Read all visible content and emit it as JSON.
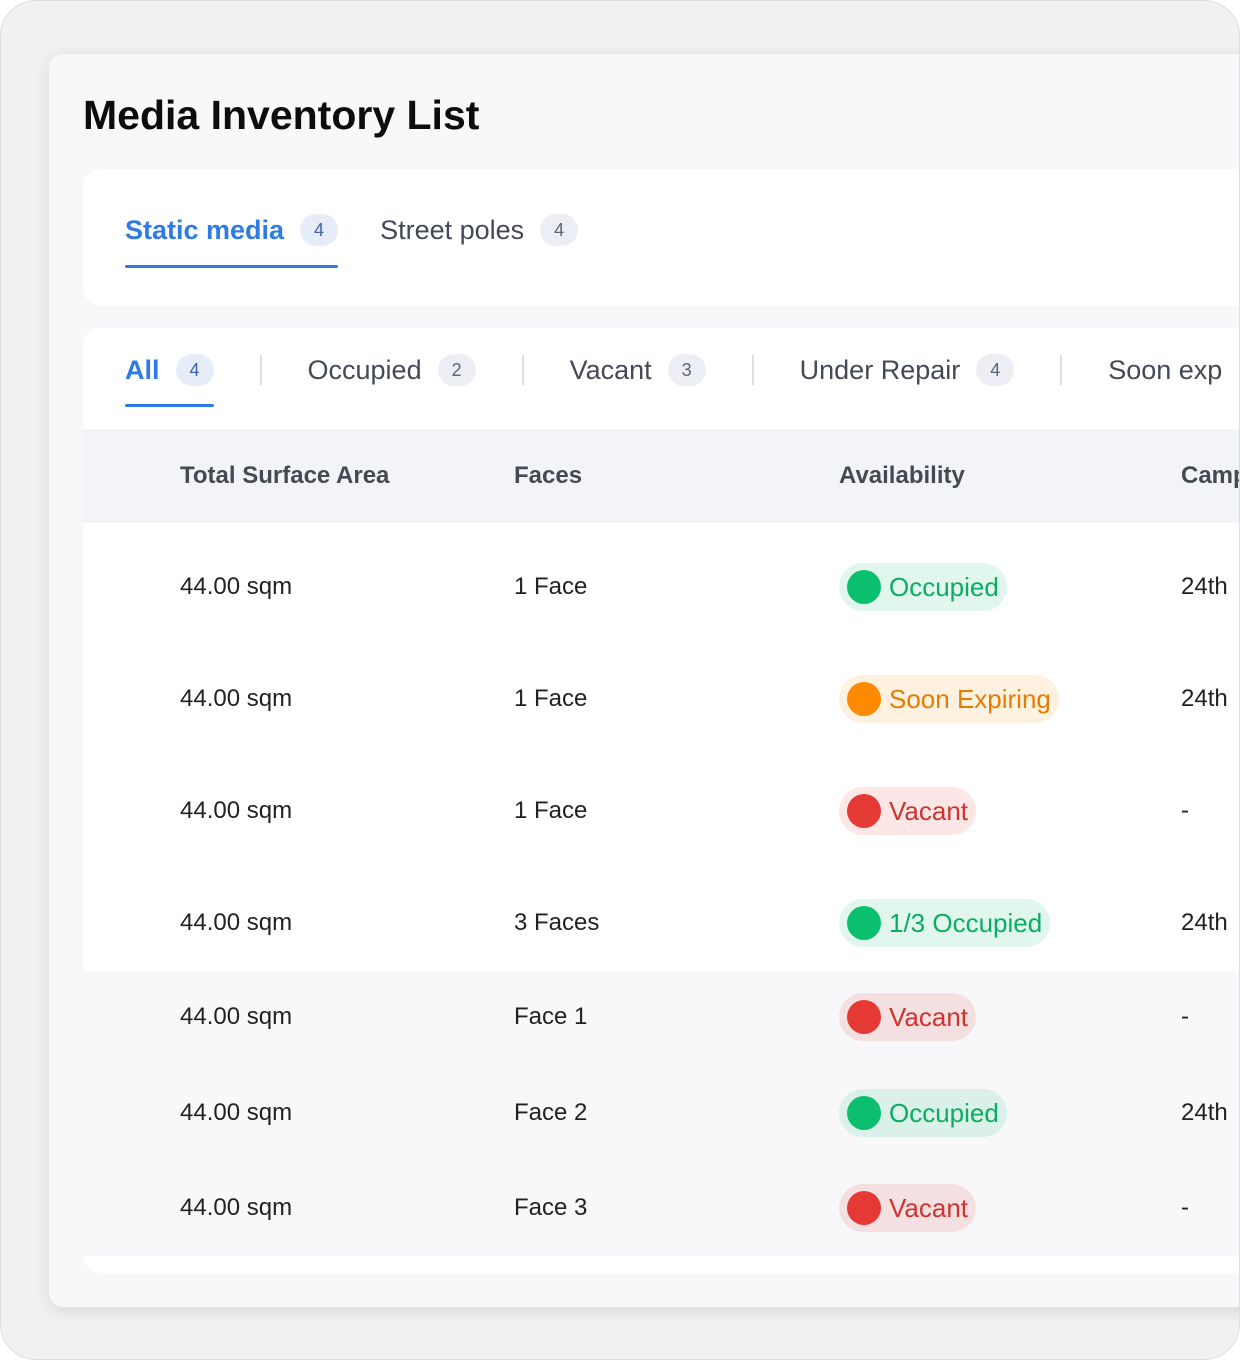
{
  "header": {
    "title": "Media Inventory List"
  },
  "tabs": [
    {
      "label": "Static media",
      "count": 4,
      "active": true
    },
    {
      "label": "Street poles",
      "count": 4,
      "active": false
    }
  ],
  "filters": [
    {
      "label": "All",
      "count": 4,
      "active": true
    },
    {
      "label": "Occupied",
      "count": 2,
      "active": false
    },
    {
      "label": "Vacant",
      "count": 3,
      "active": false
    },
    {
      "label": "Under Repair",
      "count": 4,
      "active": false
    },
    {
      "label": "Soon exp",
      "active": false
    }
  ],
  "table": {
    "columns": [
      "Total Surface Area",
      "Faces",
      "Availability",
      "Camp"
    ],
    "rows": [
      {
        "area": "44.00 sqm",
        "faces": "1 Face",
        "availability": {
          "label": "Occupied",
          "color": "#0cbf6e"
        },
        "campaign": "24th",
        "sub": false
      },
      {
        "area": "44.00 sqm",
        "faces": "1 Face",
        "availability": {
          "label": "Soon Expiring",
          "color": "#ff8a00"
        },
        "campaign": "24th",
        "sub": false
      },
      {
        "area": "44.00 sqm",
        "faces": "1 Face",
        "availability": {
          "label": "Vacant",
          "color": "#e53935"
        },
        "campaign": "-",
        "sub": false
      },
      {
        "area": "44.00 sqm",
        "faces": "3 Faces",
        "availability": {
          "label": "1/3 Occupied",
          "color": "#0cbf6e"
        },
        "campaign": "24th",
        "sub": false
      },
      {
        "area": "44.00 sqm",
        "faces": "Face 1",
        "availability": {
          "label": "Vacant",
          "color": "#e53935"
        },
        "campaign": "-",
        "sub": true
      },
      {
        "area": "44.00 sqm",
        "faces": "Face 2",
        "availability": {
          "label": "Occupied",
          "color": "#0cbf6e"
        },
        "campaign": "24th",
        "sub": true
      },
      {
        "area": "44.00 sqm",
        "faces": "Face 3",
        "availability": {
          "label": "Vacant",
          "color": "#e53935"
        },
        "campaign": "-",
        "sub": true
      }
    ]
  }
}
